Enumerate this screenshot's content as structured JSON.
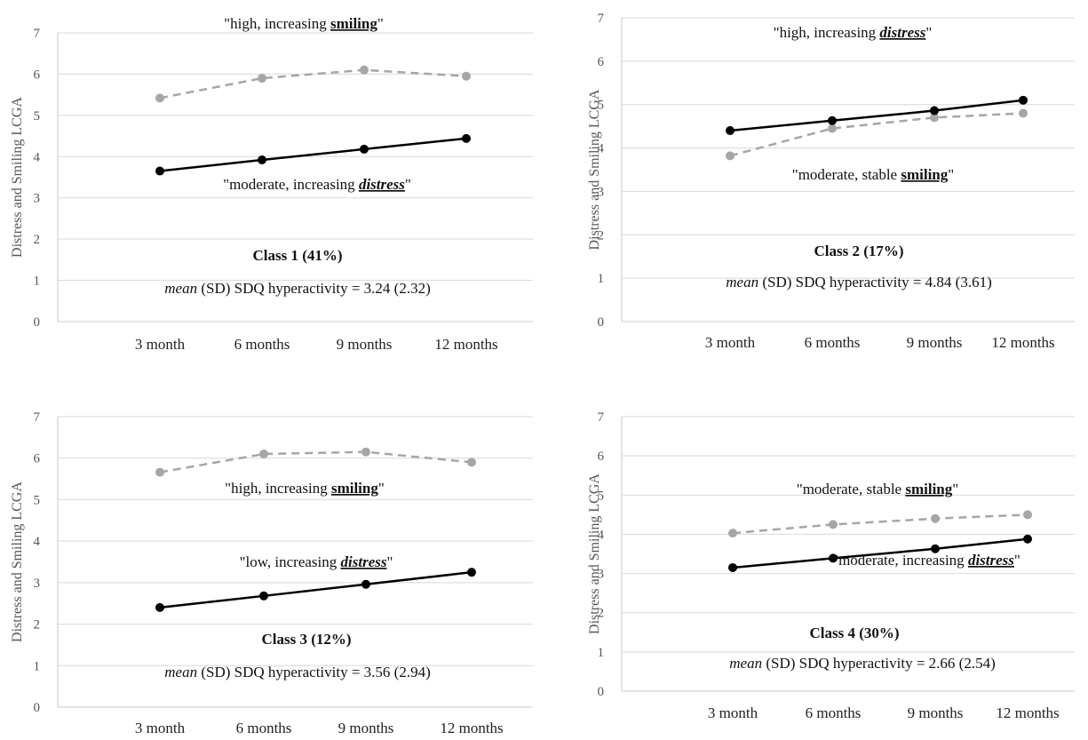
{
  "chart_data": [
    {
      "type": "line",
      "categories": [
        "3 month",
        "6 months",
        "9 months",
        "12 months"
      ],
      "ylabel": "Distress and Smiling LCGA",
      "ylim": [
        0,
        7
      ],
      "yticks": [
        "0",
        "1",
        "2",
        "3",
        "4",
        "5",
        "6",
        "7"
      ],
      "grid": true,
      "series": [
        {
          "values": [
            5.42,
            5.9,
            6.1,
            5.95
          ],
          "color": "#a6a6a6",
          "dash": true
        },
        {
          "values": [
            3.65,
            3.92,
            4.18,
            4.44
          ],
          "color": "#000000",
          "dash": false
        }
      ],
      "annotations": {
        "smiling": {
          "pre": "\"high, increasing ",
          "key": "smiling",
          "post": "\""
        },
        "distress": {
          "pre": "\"moderate, increasing ",
          "key": "distress",
          "post": "\""
        }
      },
      "class_label": "Class 1 (41%)",
      "stat": {
        "mean_word": "mean",
        "rest": " (SD) SDQ hyperactivity = 3.24 (2.32)"
      }
    },
    {
      "type": "line",
      "categories": [
        "3 month",
        "6 months",
        "9 months",
        "12 months"
      ],
      "ylabel": "Distress and Smiling LCGA",
      "ylim": [
        0,
        7
      ],
      "yticks": [
        "0",
        "1",
        "2",
        "3",
        "4",
        "5",
        "6",
        "7"
      ],
      "grid": true,
      "series": [
        {
          "values": [
            3.82,
            4.45,
            4.7,
            4.8
          ],
          "color": "#a6a6a6",
          "dash": true
        },
        {
          "values": [
            4.4,
            4.63,
            4.86,
            5.1
          ],
          "color": "#000000",
          "dash": false
        }
      ],
      "annotations": {
        "distress": {
          "pre": "\"high, increasing ",
          "key": "distress",
          "post": "\""
        },
        "smiling": {
          "pre": "\"moderate, stable ",
          "key": "smiling",
          "post": "\""
        }
      },
      "class_label": "Class 2 (17%)",
      "stat": {
        "mean_word": "mean",
        "rest": " (SD) SDQ hyperactivity = 4.84 (3.61)"
      }
    },
    {
      "type": "line",
      "categories": [
        "3 month",
        "6 months",
        "9 months",
        "12 months"
      ],
      "ylabel": "Distress and Smiling LCGA",
      "ylim": [
        0,
        7
      ],
      "yticks": [
        "0",
        "1",
        "2",
        "3",
        "4",
        "5",
        "6",
        "7"
      ],
      "grid": true,
      "series": [
        {
          "values": [
            5.66,
            6.1,
            6.15,
            5.9
          ],
          "color": "#a6a6a6",
          "dash": true
        },
        {
          "values": [
            2.4,
            2.68,
            2.96,
            3.25
          ],
          "color": "#000000",
          "dash": false
        }
      ],
      "annotations": {
        "smiling": {
          "pre": "\"high, increasing ",
          "key": "smiling",
          "post": "\""
        },
        "distress": {
          "pre": "\"low, increasing ",
          "key": "distress",
          "post": "\""
        }
      },
      "class_label": "Class 3 (12%)",
      "stat": {
        "mean_word": "mean",
        "rest": " (SD) SDQ hyperactivity = 3.56 (2.94)"
      }
    },
    {
      "type": "line",
      "categories": [
        "3 month",
        "6 months",
        "9 months",
        "12 months"
      ],
      "ylabel": "Distress and Smiling LCGA",
      "ylim": [
        0,
        7
      ],
      "yticks": [
        "0",
        "1",
        "2",
        "3",
        "4",
        "5",
        "6",
        "7"
      ],
      "grid": true,
      "series": [
        {
          "values": [
            4.03,
            4.25,
            4.4,
            4.5
          ],
          "color": "#a6a6a6",
          "dash": true
        },
        {
          "values": [
            3.15,
            3.39,
            3.63,
            3.88
          ],
          "color": "#000000",
          "dash": false
        }
      ],
      "annotations": {
        "smiling": {
          "pre": "\"moderate, stable ",
          "key": "smiling",
          "post": "\""
        },
        "distress": {
          "pre": "\"moderate, increasing ",
          "key": "distress",
          "post": "\""
        }
      },
      "class_label": "Class 4 (30%)",
      "stat": {
        "mean_word": "mean",
        "rest": " (SD) SDQ hyperactivity = 2.66 (2.54)"
      }
    }
  ]
}
